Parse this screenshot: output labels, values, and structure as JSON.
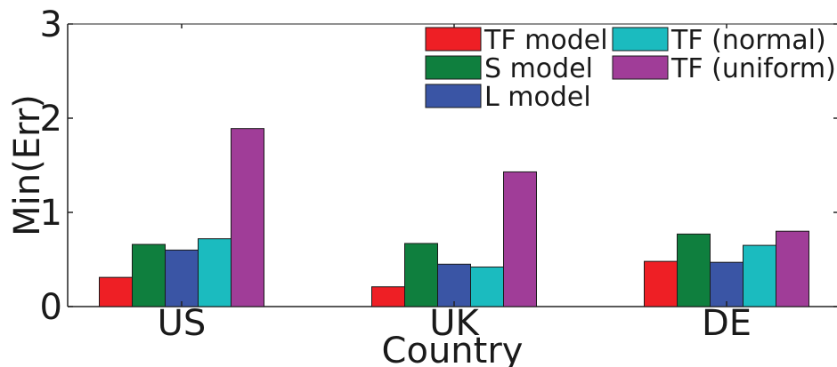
{
  "chart_data": {
    "type": "bar",
    "title": "",
    "xlabel": "Country",
    "ylabel": "Min(Err)",
    "categories": [
      "US",
      "UK",
      "DE"
    ],
    "ylim": [
      0,
      3
    ],
    "yticks": [
      "0",
      "1",
      "2",
      "3"
    ],
    "series": [
      {
        "name": "TF model",
        "color": "#ee1f25",
        "values": [
          0.31,
          0.21,
          0.48
        ]
      },
      {
        "name": "S model",
        "color": "#0f7f3e",
        "values": [
          0.66,
          0.67,
          0.77
        ]
      },
      {
        "name": "L model",
        "color": "#3a55a5",
        "values": [
          0.6,
          0.45,
          0.47
        ]
      },
      {
        "name": "TF (normal)",
        "color": "#1bbbbf",
        "values": [
          0.72,
          0.42,
          0.65
        ]
      },
      {
        "name": "TF (uniform)",
        "color": "#a03d98",
        "values": [
          1.89,
          1.43,
          0.8
        ]
      }
    ],
    "grid": false,
    "legend_position": "top-right"
  }
}
